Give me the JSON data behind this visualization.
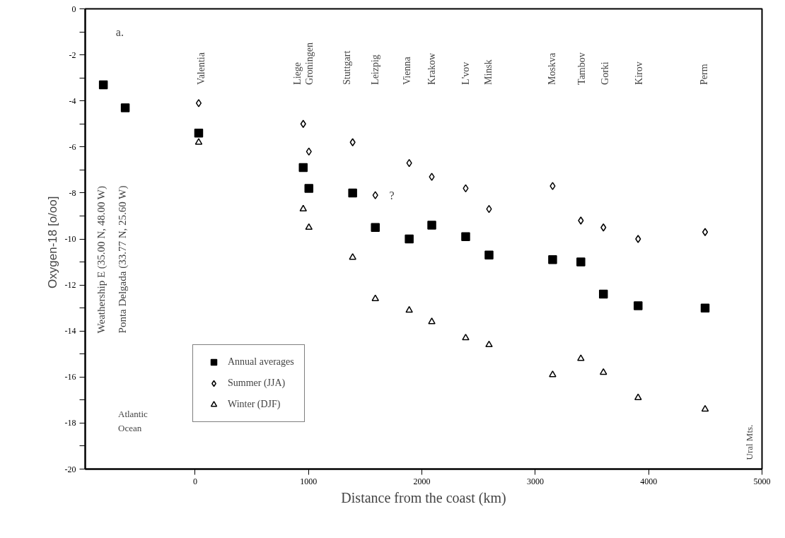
{
  "chart_data": {
    "type": "scatter",
    "xlabel": "Distance from the coast (km)",
    "ylabel": "Oxygen-18   [o/oo]",
    "xlim": [
      -970,
      5000
    ],
    "ylim": [
      -20,
      0
    ],
    "xticks": [
      0,
      1000,
      2000,
      3000,
      4000,
      5000
    ],
    "yticks": [
      0,
      {
        "value": -1,
        "label": null
      },
      -2,
      {
        "value": -3,
        "label": null
      },
      -4,
      {
        "value": -5,
        "label": null
      },
      -6,
      {
        "value": -7,
        "label": null
      },
      -8,
      {
        "value": -9,
        "label": null
      },
      -10,
      {
        "value": -11,
        "label": null
      },
      -12,
      {
        "value": -13,
        "label": null
      },
      -14,
      {
        "value": -15,
        "label": null
      },
      -16,
      {
        "value": -17,
        "label": null
      },
      -18,
      {
        "value": -19,
        "label": null
      },
      -20
    ],
    "grid": false,
    "legend": "bottom left",
    "series": [
      {
        "name": "Annual averages",
        "color": "#000000",
        "marker": "square",
        "x": [
          -810,
          -617,
          31,
          953,
          1003,
          1389,
          1589,
          1888,
          2087,
          2386,
          2592,
          3153,
          3402,
          3601,
          3907,
          4498
        ],
        "values": [
          -3.3,
          -4.3,
          -5.4,
          -6.9,
          -7.8,
          -8.0,
          -9.5,
          -10.0,
          -9.4,
          -9.9,
          -10.7,
          -10.9,
          -11.0,
          -12.4,
          -12.9,
          -13.0
        ]
      },
      {
        "name": "Summer (JJA)",
        "color": "#000000",
        "marker": "diamond",
        "x": [
          31,
          953,
          1003,
          1389,
          1589,
          1888,
          2087,
          2386,
          2592,
          3153,
          3402,
          3601,
          3907,
          4498
        ],
        "values": [
          -4.1,
          -5.0,
          -6.2,
          -5.8,
          -8.1,
          -6.7,
          -7.3,
          -7.8,
          -8.7,
          -7.7,
          -9.2,
          -9.5,
          -10.0,
          -9.7
        ]
      },
      {
        "name": "Winter (DJF)",
        "color": "#000000",
        "marker": "triangle",
        "x": [
          31,
          953,
          1003,
          1389,
          1589,
          1888,
          2087,
          2386,
          2592,
          3153,
          3402,
          3601,
          3907,
          4498
        ],
        "values": [
          -5.8,
          -8.7,
          -9.5,
          -10.8,
          -12.6,
          -13.1,
          -13.6,
          -14.3,
          -14.6,
          -15.9,
          -15.2,
          -15.8,
          -16.9,
          -17.4
        ]
      }
    ],
    "annotations": [
      "a.",
      "Weathership E (35.00 N, 48.00 W)",
      "Ponta Delgada (33.77 N, 25.60 W)",
      "Valentia",
      "Liege",
      "Groningen",
      "Stuttgart",
      "Leizpig",
      "Vienna",
      "Krakow",
      "L'vov",
      "Minsk",
      "Moskva",
      "Tambov",
      "Gorki",
      "Kirov",
      "Perm",
      "?",
      "Atlantic\nOcean",
      "Ural Mts."
    ]
  }
}
